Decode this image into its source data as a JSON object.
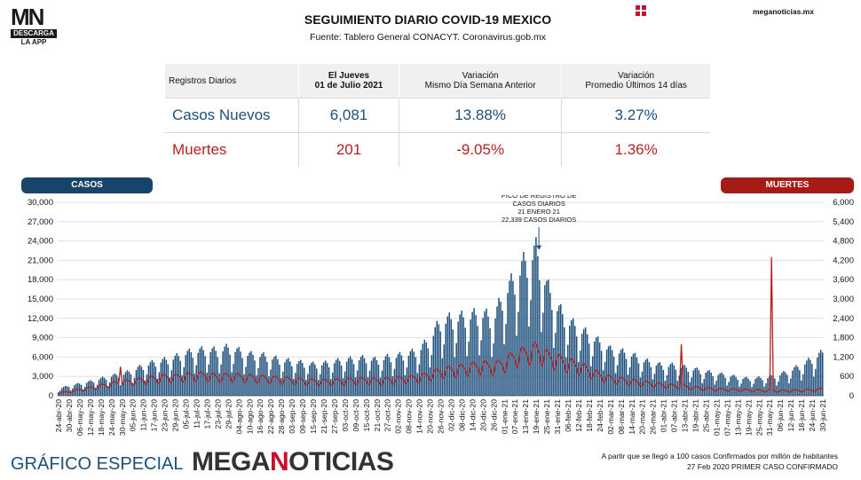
{
  "logo": {
    "mark": "MN",
    "descarga": "DESCARGA",
    "app": "LA APP"
  },
  "header": {
    "title": "SEGUIMIENTO DIARIO COVID-19 MEXICO",
    "subtitle": "Fuente: Tablero General CONACYT. Coronavirus.gob.mx",
    "site": "meganoticias.mx"
  },
  "table": {
    "header": {
      "col1": "Registros Diarios",
      "col2_line1": "El Jueves",
      "col2_line2": "01 de Julio 2021",
      "col3_line1": "Variación",
      "col3_line2": "Mismo Día Semana Anterior",
      "col4_line1": "Variación",
      "col4_line2": "Promedio Últimos 14 días"
    },
    "rows": [
      {
        "label": "Casos Nuevos",
        "value": "6,081",
        "var_week": "13.88%",
        "var_14d": "3.27%"
      },
      {
        "label": "Muertes",
        "value": "201",
        "var_week": "-9.05%",
        "var_14d": "1.36%"
      }
    ]
  },
  "colors": {
    "casos": "#1d4f7c",
    "casos_pill": "#17446b",
    "muertes": "#b5211f",
    "muertes_pill": "#a51c17",
    "accent": "#c8102e"
  },
  "chart_data": {
    "type": "bar",
    "left_axis_label": "CASOS",
    "right_axis_label": "MUERTES",
    "ylim_left": [
      0,
      30000
    ],
    "ylim_right": [
      0,
      6000
    ],
    "yticks_left": [
      "0",
      "3,000",
      "6,000",
      "9,000",
      "12,000",
      "15,000",
      "18,000",
      "21,000",
      "24,000",
      "27,000",
      "30,000"
    ],
    "yticks_right": [
      "0",
      "600",
      "1,200",
      "1,800",
      "2,400",
      "3,000",
      "3,600",
      "4,200",
      "4,800",
      "5,400",
      "6,000"
    ],
    "grid": true,
    "x_categories": [
      "24-abr-20",
      "30-abr-20",
      "06-may-20",
      "12-may-20",
      "18-may-20",
      "24-may-20",
      "30-may-20",
      "05-jun-20",
      "11-jun-20",
      "17-jun-20",
      "23-jun-20",
      "29-jun-20",
      "05-jul-20",
      "11-jul-20",
      "17-jul-20",
      "23-jul-20",
      "29-jul-20",
      "04-ago-20",
      "10-ago-20",
      "16-ago-20",
      "22-ago-20",
      "28-ago-20",
      "03-sep-20",
      "09-sep-20",
      "15-sep-20",
      "21-sep-20",
      "27-sep-20",
      "03-oct-20",
      "09-oct-20",
      "15-oct-20",
      "21-oct-20",
      "27-oct-20",
      "02-nov-20",
      "08-nov-20",
      "14-nov-20",
      "20-nov-20",
      "26-nov-20",
      "02-dic-20",
      "08-dic-20",
      "14-dic-20",
      "20-dic-20",
      "26-dic-20",
      "01-ene-21",
      "07-ene-21",
      "13-ene-21",
      "19-ene-21",
      "25-ene-21",
      "31-ene-21",
      "06-feb-21",
      "12-feb-21",
      "18-feb-21",
      "24-feb-21",
      "02-mar-21",
      "08-mar-21",
      "14-mar-21",
      "20-mar-21",
      "26-mar-21",
      "01-abr-21",
      "07-abr-21",
      "13-abr-21",
      "19-abr-21",
      "25-abr-21",
      "01-may-21",
      "07-may-21",
      "13-may-21",
      "19-may-21",
      "25-may-21",
      "31-may-21",
      "06-jun-21",
      "12-jun-21",
      "18-jun-21",
      "24-jun-21",
      "30-jun-21"
    ],
    "casos_sampled": [
      1000,
      1400,
      1700,
      2000,
      2400,
      2800,
      3000,
      3600,
      4200,
      4700,
      5000,
      5400,
      6000,
      6300,
      6500,
      6300,
      6800,
      6300,
      5800,
      5700,
      5400,
      5000,
      4800,
      4600,
      4400,
      4500,
      4800,
      5000,
      5200,
      5300,
      5000,
      5400,
      5600,
      5900,
      6500,
      8000,
      10500,
      10800,
      11000,
      11300,
      11500,
      10800,
      14500,
      16500,
      19000,
      20500,
      15500,
      12500,
      10500,
      9500,
      8500,
      7500,
      6500,
      6200,
      5800,
      5000,
      4600,
      4200,
      4300,
      4000,
      3700,
      3400,
      3100,
      2900,
      2600,
      2400,
      2500,
      2600,
      3000,
      3600,
      4300,
      5200,
      6081
    ],
    "muertes_sampled": [
      80,
      120,
      180,
      230,
      300,
      360,
      400,
      440,
      480,
      520,
      560,
      560,
      600,
      620,
      620,
      560,
      600,
      580,
      560,
      540,
      520,
      500,
      480,
      460,
      440,
      430,
      440,
      460,
      470,
      480,
      460,
      480,
      500,
      520,
      560,
      640,
      740,
      780,
      820,
      880,
      920,
      880,
      1000,
      1200,
      1300,
      1400,
      1200,
      1100,
      1000,
      900,
      760,
      620,
      520,
      480,
      440,
      400,
      360,
      320,
      300,
      280,
      240,
      220,
      200,
      190,
      180,
      170,
      160,
      160,
      150,
      150,
      160,
      170,
      201
    ],
    "spikes_muertes": [
      {
        "date": "29-may-20",
        "value": 900
      },
      {
        "date": "11-abr-21",
        "value": 1600
      },
      {
        "date": "01-jun-21",
        "value": 4300
      }
    ],
    "peak_annotation": {
      "line1": "PICO DE REGISTRO DE",
      "line2": "CASOS DIARIOS",
      "line3": "21 ENERO 21",
      "line4": "22,339 CASOS DIARIOS",
      "date": "21-ene-21",
      "value": 22339
    }
  },
  "footer": {
    "left": "GRÁFICO ESPECIAL",
    "brand_a": "MEGA",
    "brand_n": "N",
    "brand_b": "OTICIAS",
    "note_line1": "A partir que se llegó a 100 casos Confirmados por millón de habitantes",
    "note_line2": "27 Feb 2020 PRIMER CASO CONFIRMADO"
  }
}
